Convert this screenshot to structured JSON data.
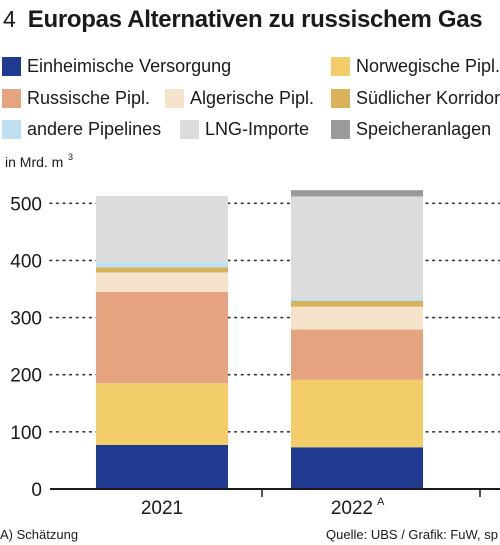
{
  "header": {
    "number": "4",
    "title": "Europas Alternativen zu russischem Gas"
  },
  "legend": {
    "items": [
      {
        "label": "Einheimische Versorgung",
        "color": "#1f3a8f"
      },
      {
        "label": "Norwegische Pipl.",
        "color": "#f2cd6a"
      },
      {
        "label": "Russische Pipl.",
        "color": "#e5a47f"
      },
      {
        "label": "Algerische Pipl.",
        "color": "#f6e3cc"
      },
      {
        "label": "Südlicher Korridor",
        "color": "#d9b25a"
      },
      {
        "label": "andere Pipelines",
        "color": "#bfe0f2"
      },
      {
        "label": "LNG-Importe",
        "color": "#dcdcdc"
      },
      {
        "label": "Speicheranlagen",
        "color": "#9a9a9a"
      }
    ]
  },
  "footer": {
    "note": "A) Schätzung",
    "source": "Quelle: UBS / Grafik: FuW, sp"
  },
  "chart_data": {
    "type": "bar",
    "stacked": true,
    "unit_label": "in Mrd. m",
    "unit_superscript": "3",
    "categories": [
      "2021",
      "2022"
    ],
    "category_superscripts": [
      "",
      "A"
    ],
    "ylim": [
      0,
      550
    ],
    "yticks": [
      0,
      100,
      200,
      300,
      400,
      500
    ],
    "grid": "dotted",
    "series": [
      {
        "name": "Einheimische Versorgung",
        "color": "#1f3a8f",
        "values": [
          77,
          73
        ]
      },
      {
        "name": "Norwegische Pipl.",
        "color": "#f2cd6a",
        "values": [
          108,
          118
        ]
      },
      {
        "name": "Russische Pipl.",
        "color": "#e5a47f",
        "values": [
          160,
          88
        ]
      },
      {
        "name": "Algerische Pipl.",
        "color": "#f6e3cc",
        "values": [
          34,
          40
        ]
      },
      {
        "name": "Südlicher Korridor",
        "color": "#d9b25a",
        "values": [
          9,
          10
        ]
      },
      {
        "name": "andere Pipelines",
        "color": "#bfe0f2",
        "values": [
          9,
          5
        ]
      },
      {
        "name": "LNG-Importe",
        "color": "#dcdcdc",
        "values": [
          116,
          178
        ]
      },
      {
        "name": "Speicheranlagen",
        "color": "#9a9a9a",
        "values": [
          0,
          11
        ]
      }
    ]
  }
}
